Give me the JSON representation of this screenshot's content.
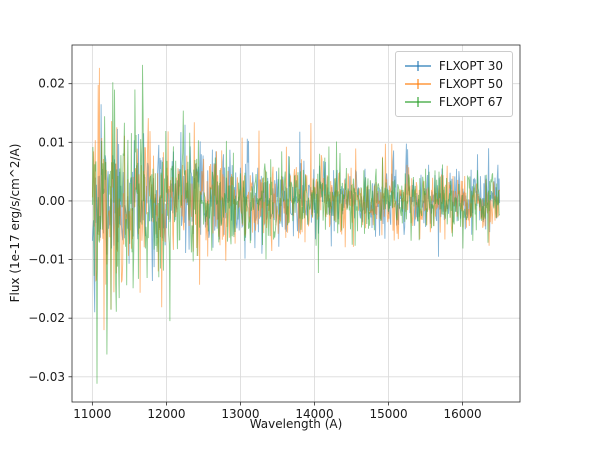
{
  "chart_data": {
    "type": "line",
    "title": "",
    "xlabel": "Wavelength (A)",
    "ylabel": "Flux (1e-17 erg/s/cm^2/A)",
    "xlim": [
      10725,
      16775
    ],
    "ylim": [
      -0.0343,
      0.0266
    ],
    "xticks": [
      11000,
      12000,
      13000,
      14000,
      15000,
      16000
    ],
    "xtick_labels": [
      "11000",
      "12000",
      "13000",
      "14000",
      "15000",
      "16000"
    ],
    "yticks": [
      -0.03,
      -0.02,
      -0.01,
      0,
      0.01,
      0.02
    ],
    "ytick_labels": [
      "−0.03",
      "−0.02",
      "−0.01",
      "0.00",
      "0.01",
      "0.02"
    ],
    "grid": true,
    "grid_color": "#d9d9d9",
    "spine_color": "#2b2b2b",
    "legend_position": "upper right",
    "x_range": [
      11000,
      16500
    ],
    "n_points": 700,
    "series": [
      {
        "name": "FLXOPT 30",
        "color": "#1f77b4",
        "opacity": 0.55,
        "seed": 11,
        "noise": {
          "sigma_start": 0.006,
          "sigma_end": 0.0024,
          "tau": 2000
        },
        "spikes": [
          [
            11030,
            -0.019
          ],
          [
            11120,
            0.0165
          ],
          [
            12250,
            0.013
          ],
          [
            13800,
            0.0118
          ],
          [
            16350,
            0.009
          ]
        ]
      },
      {
        "name": "FLXOPT 50",
        "color": "#ff7f0e",
        "opacity": 0.55,
        "seed": 22,
        "noise": {
          "sigma_start": 0.0075,
          "sigma_end": 0.0024,
          "tau": 1800
        },
        "spikes": [
          [
            11080,
            0.0198
          ],
          [
            11250,
            -0.0185
          ],
          [
            12450,
            -0.0143
          ],
          [
            13250,
            0.012
          ],
          [
            13950,
            0.0133
          ]
        ]
      },
      {
        "name": "FLXOPT 67",
        "color": "#2ca02c",
        "opacity": 0.55,
        "seed": 33,
        "noise": {
          "sigma_start": 0.0095,
          "sigma_end": 0.0024,
          "tau": 1500
        },
        "spikes": [
          [
            11060,
            -0.0312
          ],
          [
            11200,
            -0.0262
          ],
          [
            11300,
            0.019
          ],
          [
            11680,
            0.0232
          ],
          [
            12050,
            -0.0205
          ],
          [
            14050,
            -0.0123
          ]
        ]
      }
    ]
  }
}
